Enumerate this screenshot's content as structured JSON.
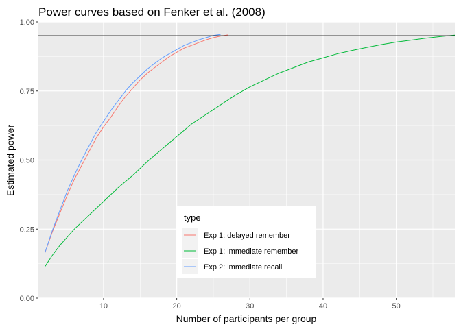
{
  "chart_data": {
    "type": "line",
    "title": "Power curves based on Fenker et al. (2008)",
    "xlabel": "Number of participants per group",
    "ylabel": "Estimated power",
    "xlim": [
      1.1,
      58
    ],
    "ylim": [
      0,
      1
    ],
    "x_ticks": [
      10,
      20,
      30,
      40,
      50
    ],
    "x_tick_labels": [
      "10",
      "20",
      "30",
      "40",
      "50"
    ],
    "y_ticks": [
      0,
      0.25,
      0.5,
      0.75,
      1.0
    ],
    "y_tick_labels": [
      "0.00",
      "0.25",
      "0.50",
      "0.75",
      "1.00"
    ],
    "grid": true,
    "reference_line": {
      "y": 0.95,
      "color": "#000000"
    },
    "legend": {
      "title": "type",
      "position": "bottom-center"
    },
    "series": [
      {
        "name": "Exp 1: delayed remember",
        "color": "#F8766D",
        "x": [
          2,
          3,
          4,
          5,
          6,
          7,
          8,
          9,
          10,
          11,
          12,
          13,
          14,
          15,
          16,
          17,
          18,
          19,
          20,
          21,
          22,
          23,
          24,
          25,
          26,
          27
        ],
        "y": [
          0.165,
          0.24,
          0.305,
          0.37,
          0.43,
          0.48,
          0.53,
          0.58,
          0.62,
          0.655,
          0.695,
          0.73,
          0.76,
          0.79,
          0.815,
          0.835,
          0.855,
          0.875,
          0.89,
          0.905,
          0.915,
          0.925,
          0.935,
          0.943,
          0.949,
          0.953
        ]
      },
      {
        "name": "Exp 1: immediate remember",
        "color": "#00BA38",
        "x": [
          2,
          3,
          4,
          6,
          8,
          10,
          12,
          14,
          16,
          18,
          20,
          22,
          24,
          26,
          28,
          30,
          32,
          34,
          36,
          38,
          40,
          42,
          44,
          46,
          48,
          50,
          52,
          54,
          56,
          58
        ],
        "y": [
          0.115,
          0.155,
          0.19,
          0.25,
          0.3,
          0.35,
          0.4,
          0.445,
          0.495,
          0.54,
          0.585,
          0.63,
          0.665,
          0.7,
          0.735,
          0.765,
          0.79,
          0.815,
          0.835,
          0.855,
          0.87,
          0.885,
          0.897,
          0.908,
          0.918,
          0.927,
          0.934,
          0.941,
          0.947,
          0.952
        ]
      },
      {
        "name": "Exp 2: immediate recall",
        "color": "#619CFF",
        "x": [
          2,
          3,
          4,
          5,
          6,
          7,
          8,
          9,
          10,
          11,
          12,
          13,
          14,
          15,
          16,
          17,
          18,
          19,
          20,
          21,
          22,
          23,
          24,
          25,
          26
        ],
        "y": [
          0.165,
          0.245,
          0.315,
          0.385,
          0.445,
          0.5,
          0.55,
          0.6,
          0.64,
          0.68,
          0.715,
          0.75,
          0.78,
          0.805,
          0.83,
          0.85,
          0.87,
          0.885,
          0.9,
          0.915,
          0.925,
          0.935,
          0.943,
          0.951,
          0.955
        ]
      }
    ]
  }
}
